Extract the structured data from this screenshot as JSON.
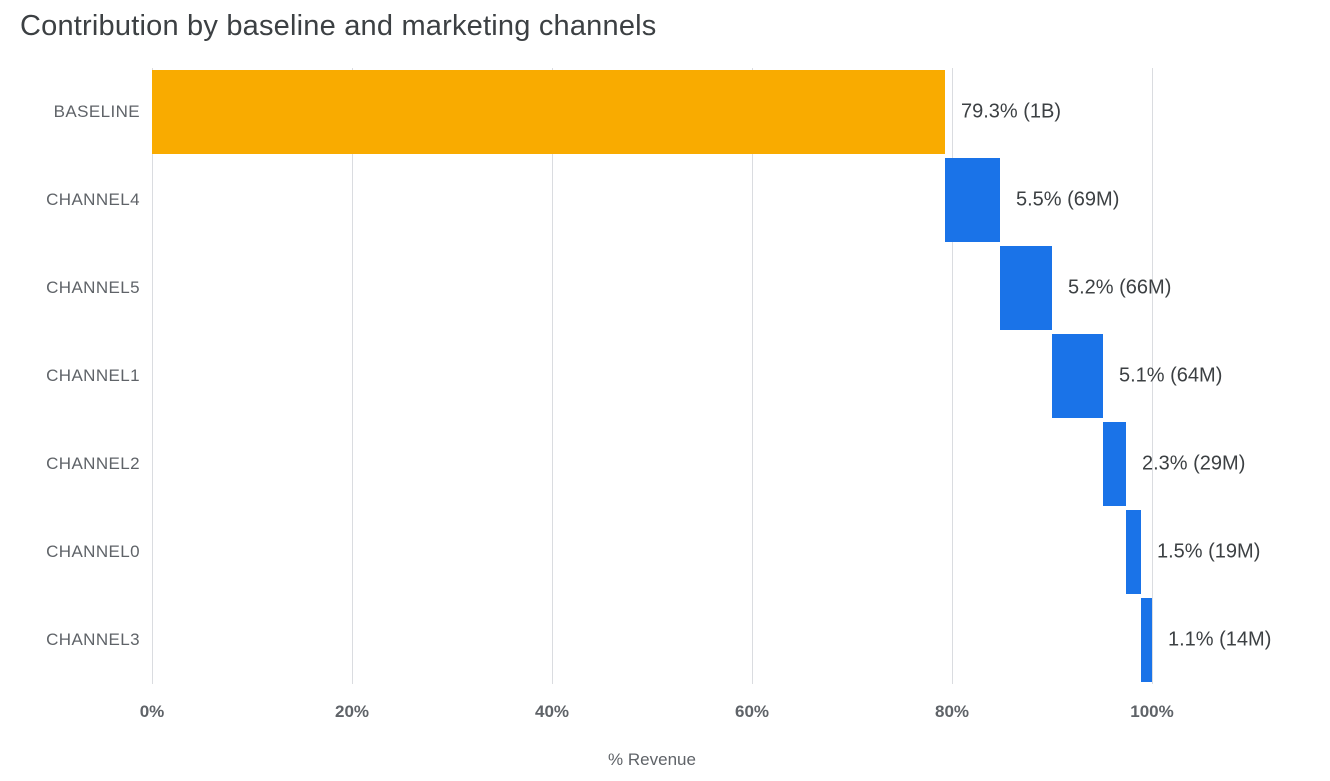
{
  "chart_data": {
    "type": "bar",
    "subtype": "horizontal-waterfall",
    "title": "Contribution by baseline and marketing channels",
    "categories": [
      "BASELINE",
      "CHANNEL4",
      "CHANNEL5",
      "CHANNEL1",
      "CHANNEL2",
      "CHANNEL0",
      "CHANNEL3"
    ],
    "values": [
      79.3,
      5.5,
      5.2,
      5.1,
      2.3,
      1.5,
      1.1
    ],
    "data_labels": [
      "79.3% (1B)",
      "5.5% (69M)",
      "5.2% (66M)",
      "5.1% (64M)",
      "2.3% (29M)",
      "1.5% (19M)",
      "1.1% (14M)"
    ],
    "bar_colors": [
      "#F9AB00",
      "#1A73E8",
      "#1A73E8",
      "#1A73E8",
      "#1A73E8",
      "#1A73E8",
      "#1A73E8"
    ],
    "cumulative_starts": [
      0,
      79.3,
      84.8,
      90.0,
      95.1,
      97.4,
      98.9
    ],
    "xlabel": "% Revenue",
    "x_ticks": [
      "0%",
      "20%",
      "40%",
      "60%",
      "80%",
      "100%"
    ],
    "x_tick_values": [
      0,
      20,
      40,
      60,
      80,
      100
    ],
    "xlim": [
      0,
      118
    ],
    "grid": "vertical",
    "legend": "none",
    "colors": {
      "baseline_bar": "#F9AB00",
      "channel_bar": "#1A73E8",
      "gridline": "#DADCE0",
      "title_text": "#3C4043",
      "axis_text": "#5F6368",
      "background": "#FFFFFF"
    }
  }
}
